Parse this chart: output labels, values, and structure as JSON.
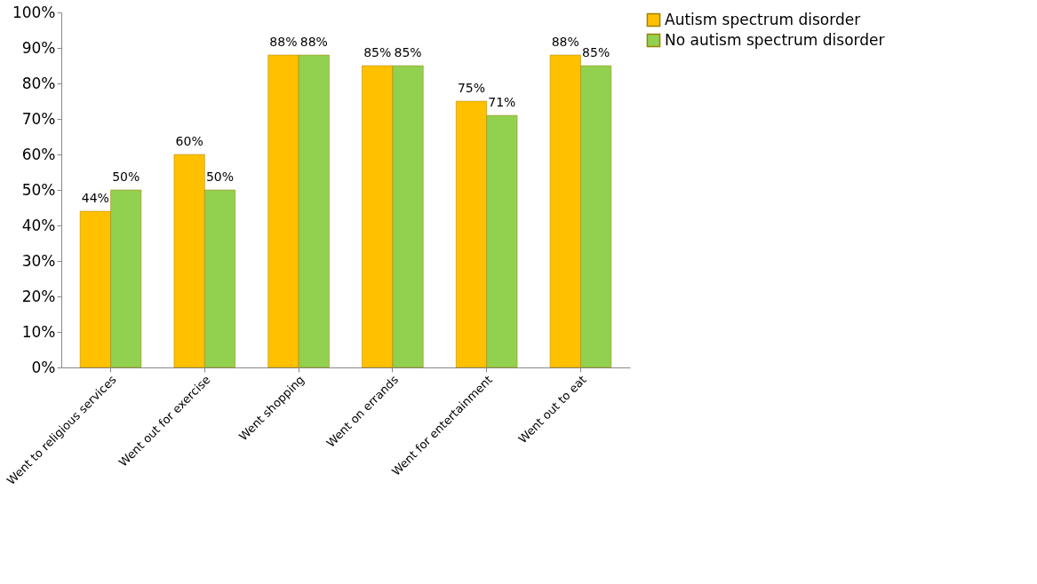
{
  "chart_data": {
    "type": "bar",
    "categories": [
      "Went to religious services",
      "Went out for exercise",
      "Went shopping",
      "Went on errands",
      "Went for entertainment",
      "Went out to eat"
    ],
    "series": [
      {
        "name": "Autism spectrum disorder",
        "color": "#ffc000",
        "values": [
          44,
          60,
          88,
          85,
          75,
          88
        ],
        "value_labels": [
          "44%",
          "60%",
          "88%",
          "85%",
          "75%",
          "88%"
        ]
      },
      {
        "name": "No autism spectrum disorder",
        "color": "#92d050",
        "values": [
          50,
          50,
          88,
          85,
          71,
          85
        ],
        "value_labels": [
          "50%",
          "50%",
          "88%",
          "85%",
          "71%",
          "85%"
        ]
      }
    ],
    "ylim": [
      0,
      100
    ],
    "yticks": [
      {
        "value": 0,
        "label": "0%"
      },
      {
        "value": 10,
        "label": "10%"
      },
      {
        "value": 20,
        "label": "20%"
      },
      {
        "value": 30,
        "label": "30%"
      },
      {
        "value": 40,
        "label": "40%"
      },
      {
        "value": 50,
        "label": "50%"
      },
      {
        "value": 60,
        "label": "60%"
      },
      {
        "value": 70,
        "label": "70%"
      },
      {
        "value": 80,
        "label": "80%"
      },
      {
        "value": 90,
        "label": "90%"
      },
      {
        "value": 100,
        "label": "100%"
      }
    ],
    "grid": false,
    "legend": "right"
  }
}
